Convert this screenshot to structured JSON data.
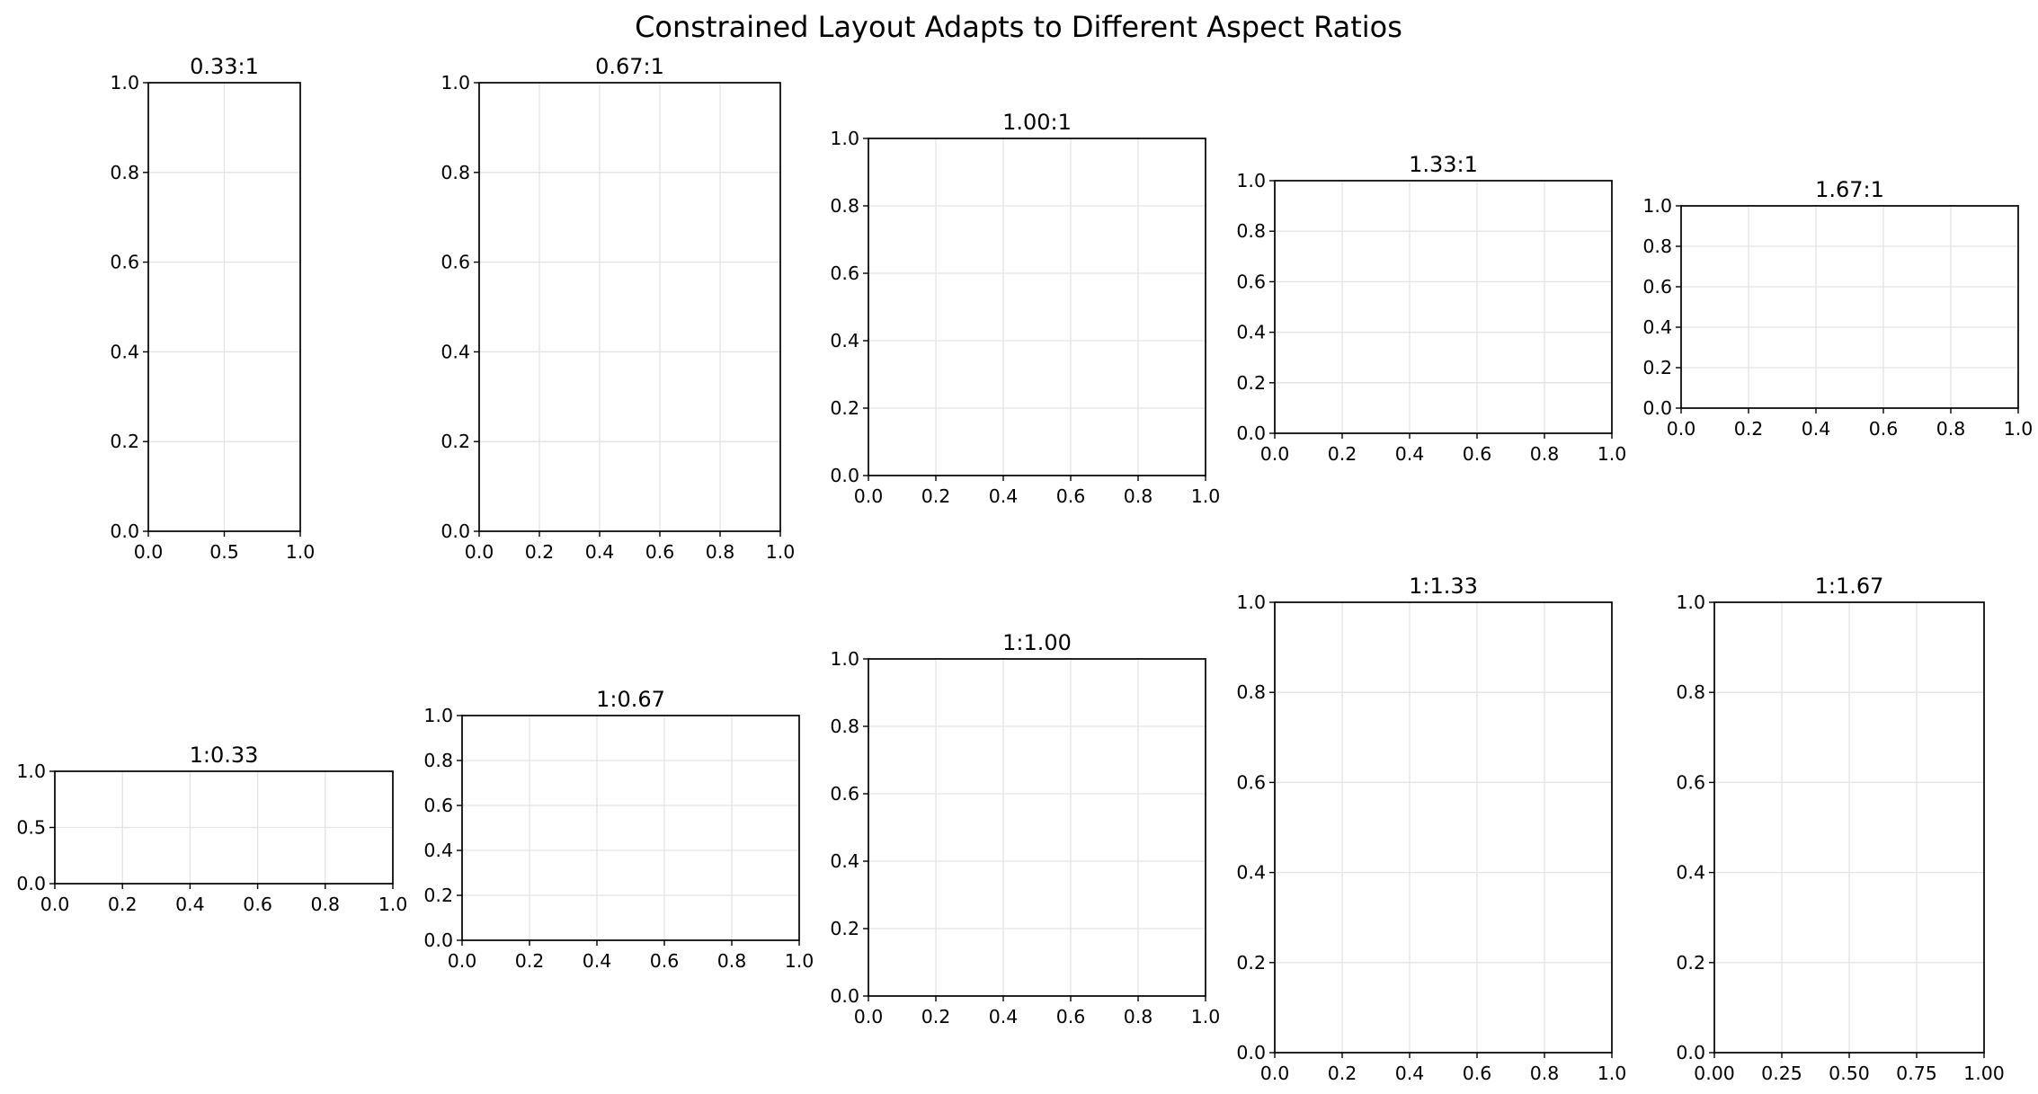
{
  "figure": {
    "title": "Constrained Layout Adapts to Different Aspect Ratios"
  },
  "chart_data": [
    {
      "type": "line",
      "title": "0.33:1",
      "xlim": [
        0,
        1
      ],
      "ylim": [
        0,
        1
      ],
      "xticks": [
        "0.0",
        "0.5",
        "1.0"
      ],
      "yticks": [
        "0.0",
        "0.2",
        "0.4",
        "0.6",
        "0.8",
        "1.0"
      ],
      "grid": true,
      "series": []
    },
    {
      "type": "line",
      "title": "0.67:1",
      "xlim": [
        0,
        1
      ],
      "ylim": [
        0,
        1
      ],
      "xticks": [
        "0.0",
        "0.2",
        "0.4",
        "0.6",
        "0.8",
        "1.0"
      ],
      "yticks": [
        "0.0",
        "0.2",
        "0.4",
        "0.6",
        "0.8",
        "1.0"
      ],
      "grid": true,
      "series": []
    },
    {
      "type": "line",
      "title": "1.00:1",
      "xlim": [
        0,
        1
      ],
      "ylim": [
        0,
        1
      ],
      "xticks": [
        "0.0",
        "0.2",
        "0.4",
        "0.6",
        "0.8",
        "1.0"
      ],
      "yticks": [
        "0.0",
        "0.2",
        "0.4",
        "0.6",
        "0.8",
        "1.0"
      ],
      "grid": true,
      "series": []
    },
    {
      "type": "line",
      "title": "1.33:1",
      "xlim": [
        0,
        1
      ],
      "ylim": [
        0,
        1
      ],
      "xticks": [
        "0.0",
        "0.2",
        "0.4",
        "0.6",
        "0.8",
        "1.0"
      ],
      "yticks": [
        "0.0",
        "0.2",
        "0.4",
        "0.6",
        "0.8",
        "1.0"
      ],
      "grid": true,
      "series": []
    },
    {
      "type": "line",
      "title": "1.67:1",
      "xlim": [
        0,
        1
      ],
      "ylim": [
        0,
        1
      ],
      "xticks": [
        "0.0",
        "0.2",
        "0.4",
        "0.6",
        "0.8",
        "1.0"
      ],
      "yticks": [
        "0.0",
        "0.2",
        "0.4",
        "0.6",
        "0.8",
        "1.0"
      ],
      "grid": true,
      "series": []
    },
    {
      "type": "line",
      "title": "1:0.33",
      "xlim": [
        0,
        1
      ],
      "ylim": [
        0,
        1
      ],
      "xticks": [
        "0.0",
        "0.2",
        "0.4",
        "0.6",
        "0.8",
        "1.0"
      ],
      "yticks": [
        "0.0",
        "0.5",
        "1.0"
      ],
      "grid": true,
      "series": []
    },
    {
      "type": "line",
      "title": "1:0.67",
      "xlim": [
        0,
        1
      ],
      "ylim": [
        0,
        1
      ],
      "xticks": [
        "0.0",
        "0.2",
        "0.4",
        "0.6",
        "0.8",
        "1.0"
      ],
      "yticks": [
        "0.0",
        "0.2",
        "0.4",
        "0.6",
        "0.8",
        "1.0"
      ],
      "grid": true,
      "series": []
    },
    {
      "type": "line",
      "title": "1:1.00",
      "xlim": [
        0,
        1
      ],
      "ylim": [
        0,
        1
      ],
      "xticks": [
        "0.0",
        "0.2",
        "0.4",
        "0.6",
        "0.8",
        "1.0"
      ],
      "yticks": [
        "0.0",
        "0.2",
        "0.4",
        "0.6",
        "0.8",
        "1.0"
      ],
      "grid": true,
      "series": []
    },
    {
      "type": "line",
      "title": "1:1.33",
      "xlim": [
        0,
        1
      ],
      "ylim": [
        0,
        1
      ],
      "xticks": [
        "0.0",
        "0.2",
        "0.4",
        "0.6",
        "0.8",
        "1.0"
      ],
      "yticks": [
        "0.0",
        "0.2",
        "0.4",
        "0.6",
        "0.8",
        "1.0"
      ],
      "grid": true,
      "series": []
    },
    {
      "type": "line",
      "title": "1:1.67",
      "xlim": [
        0,
        1
      ],
      "ylim": [
        0,
        1
      ],
      "xticks": [
        "0.00",
        "0.25",
        "0.50",
        "0.75",
        "1.00"
      ],
      "yticks": [
        "0.0",
        "0.2",
        "0.4",
        "0.6",
        "0.8",
        "1.0"
      ],
      "grid": true,
      "series": []
    }
  ]
}
